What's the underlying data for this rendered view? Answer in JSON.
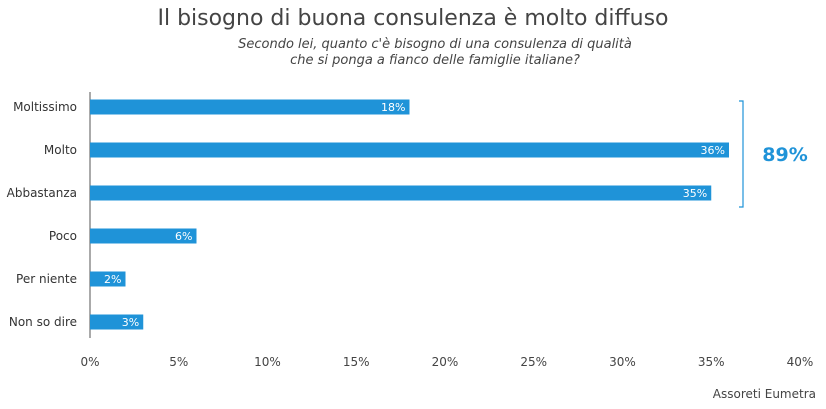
{
  "chart_data": {
    "type": "bar",
    "orientation": "horizontal",
    "title": "Il bisogno di buona consulenza è molto diffuso",
    "subtitle_lines": [
      "Secondo lei, quanto c'è bisogno di una consulenza di qualità",
      "che si ponga a fianco delle famiglie italiane?"
    ],
    "categories": [
      "Moltissimo",
      "Molto",
      "Abbastanza",
      "Poco",
      "Per niente",
      "Non so dire"
    ],
    "values": [
      18,
      36,
      35,
      6,
      2,
      3
    ],
    "value_labels": [
      "18%",
      "36%",
      "35%",
      "6%",
      "2%",
      "3%"
    ],
    "xlim": [
      0,
      40
    ],
    "x_ticks": [
      0,
      5,
      10,
      15,
      20,
      25,
      30,
      35,
      40
    ],
    "x_tick_labels": [
      "0%",
      "5%",
      "10%",
      "15%",
      "20%",
      "25%",
      "30%",
      "35%",
      "40%"
    ],
    "grid": false,
    "bracket": {
      "spans": [
        "Moltissimo",
        "Abbastanza"
      ],
      "label": "89%"
    },
    "colors": {
      "bar": "#1f93d8",
      "bracket": "#1f93d8",
      "axis": "#555555"
    }
  },
  "source": "Assoreti Eumetra"
}
